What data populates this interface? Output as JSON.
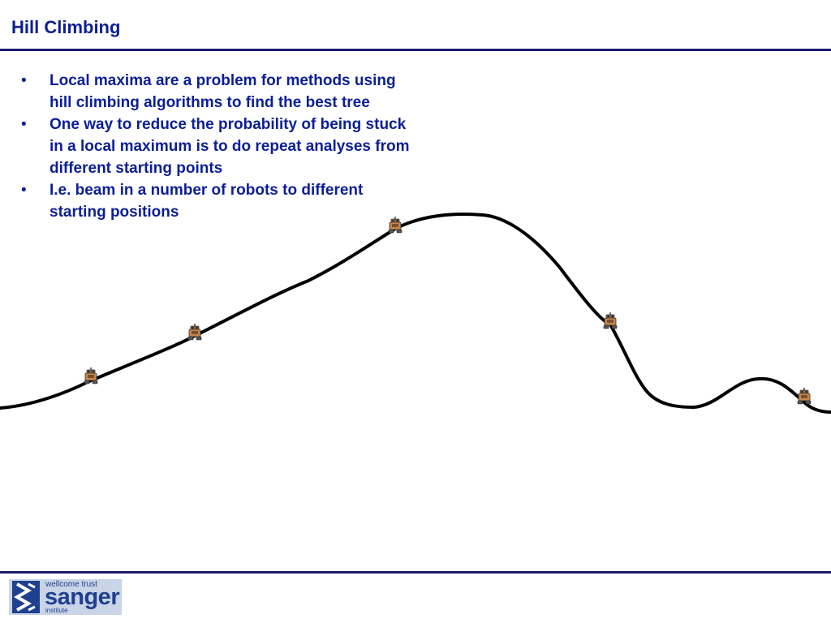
{
  "slide": {
    "title": "Hill Climbing",
    "bullet_char": "•",
    "bullets": [
      {
        "lines": [
          "Local maxima are a problem for methods using",
          "hill climbing algorithms to find the best tree"
        ]
      },
      {
        "lines": [
          "One way to reduce the probability of being stuck",
          "in a local maximum is to do repeat analyses from",
          "different starting points"
        ]
      },
      {
        "lines": [
          "I.e. beam in a number of robots to different",
          "starting positions"
        ]
      }
    ]
  },
  "figure": {
    "robot_count": 5,
    "robot_icon": "robot-icon"
  },
  "footer": {
    "logo": {
      "line1": "wellcome trust",
      "line2": "sanger",
      "line3": "institute"
    }
  },
  "colors": {
    "title_text": "#0b1e96",
    "body_text": "#0b1e96",
    "rule": "#1a1a6e",
    "curve": "#000000",
    "logo_bg": "#c9d4e6",
    "logo_text": "#1f3f8f"
  }
}
